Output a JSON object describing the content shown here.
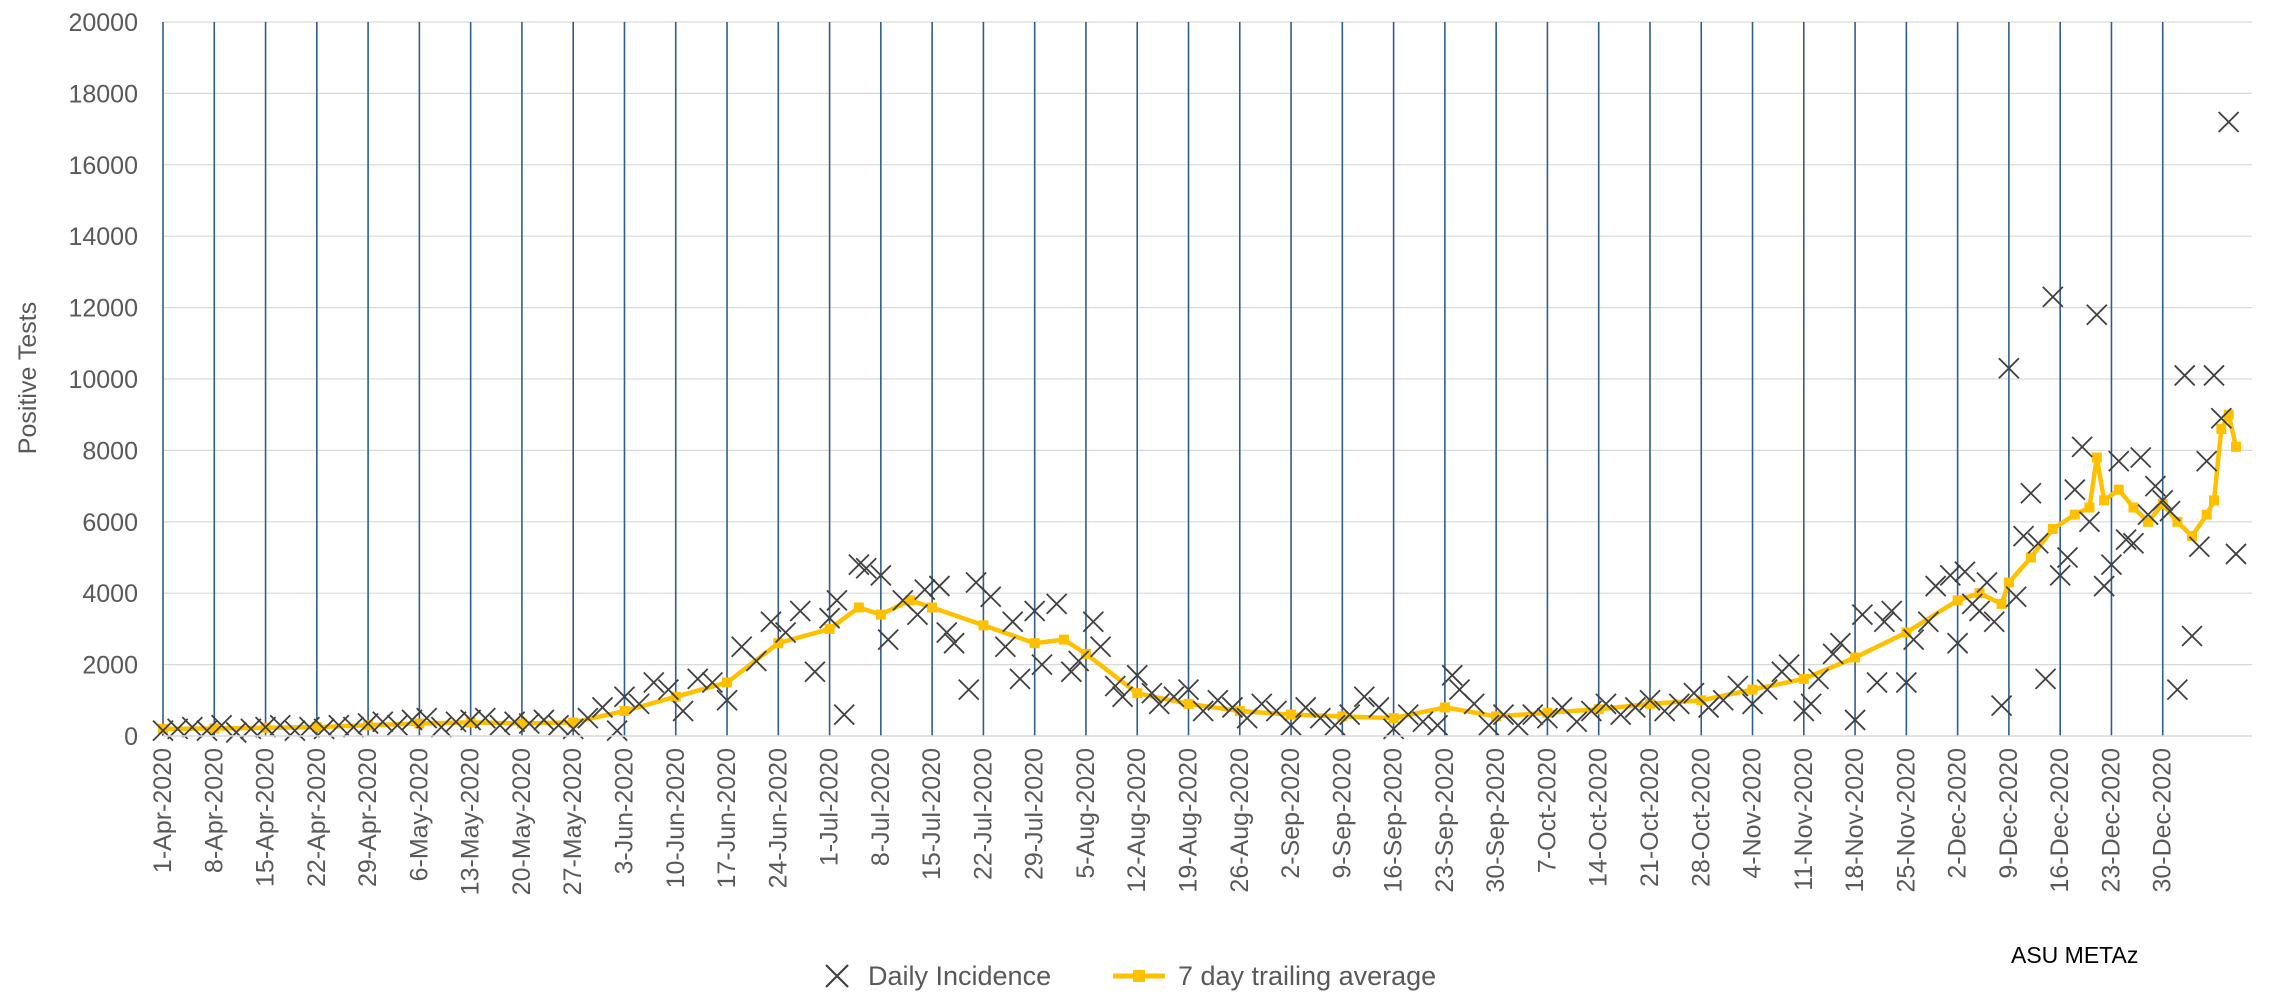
{
  "chart_data": {
    "type": "scatter",
    "xlabel": "",
    "ylabel": "Positive Tests",
    "ylim": [
      0,
      20000
    ],
    "yticks": [
      "0",
      "2000",
      "4000",
      "6000",
      "8000",
      "10000",
      "12000",
      "14000",
      "16000",
      "18000",
      "20000"
    ],
    "x_start": "2020-04-01",
    "x_end": "2021-01-06",
    "xticks": [
      "1-Apr-2020",
      "8-Apr-2020",
      "15-Apr-2020",
      "22-Apr-2020",
      "29-Apr-2020",
      "6-May-2020",
      "13-May-2020",
      "20-May-2020",
      "27-May-2020",
      "3-Jun-2020",
      "10-Jun-2020",
      "17-Jun-2020",
      "24-Jun-2020",
      "1-Jul-2020",
      "8-Jul-2020",
      "15-Jul-2020",
      "22-Jul-2020",
      "29-Jul-2020",
      "5-Aug-2020",
      "12-Aug-2020",
      "19-Aug-2020",
      "26-Aug-2020",
      "2-Sep-2020",
      "9-Sep-2020",
      "16-Sep-2020",
      "23-Sep-2020",
      "30-Sep-2020",
      "7-Oct-2020",
      "14-Oct-2020",
      "21-Oct-2020",
      "28-Oct-2020",
      "4-Nov-2020",
      "11-Nov-2020",
      "18-Nov-2020",
      "25-Nov-2020",
      "2-Dec-2020",
      "9-Dec-2020",
      "16-Dec-2020",
      "23-Dec-2020",
      "30-Dec-2020"
    ],
    "grid": "vertical lines at each weekly tick, horizontal gridlines",
    "legend": "bottom",
    "series": [
      {
        "name": "Daily Incidence",
        "marker": "x",
        "color": "#404040",
        "points": [
          [
            "2020-04-01",
            150
          ],
          [
            "2020-04-03",
            200
          ],
          [
            "2020-04-05",
            250
          ],
          [
            "2020-04-07",
            150
          ],
          [
            "2020-04-09",
            300
          ],
          [
            "2020-04-11",
            100
          ],
          [
            "2020-04-13",
            200
          ],
          [
            "2020-04-15",
            250
          ],
          [
            "2020-04-17",
            300
          ],
          [
            "2020-04-19",
            150
          ],
          [
            "2020-04-21",
            250
          ],
          [
            "2020-04-23",
            200
          ],
          [
            "2020-04-25",
            300
          ],
          [
            "2020-04-27",
            250
          ],
          [
            "2020-04-29",
            350
          ],
          [
            "2020-05-01",
            400
          ],
          [
            "2020-05-03",
            300
          ],
          [
            "2020-05-05",
            450
          ],
          [
            "2020-05-07",
            500
          ],
          [
            "2020-05-09",
            250
          ],
          [
            "2020-05-11",
            400
          ],
          [
            "2020-05-13",
            450
          ],
          [
            "2020-05-15",
            500
          ],
          [
            "2020-05-17",
            300
          ],
          [
            "2020-05-19",
            400
          ],
          [
            "2020-05-21",
            350
          ],
          [
            "2020-05-23",
            450
          ],
          [
            "2020-05-25",
            300
          ],
          [
            "2020-05-27",
            200
          ],
          [
            "2020-05-29",
            500
          ],
          [
            "2020-05-31",
            800
          ],
          [
            "2020-06-02",
            150
          ],
          [
            "2020-06-03",
            1100
          ],
          [
            "2020-06-05",
            900
          ],
          [
            "2020-06-07",
            1500
          ],
          [
            "2020-06-09",
            1300
          ],
          [
            "2020-06-11",
            700
          ],
          [
            "2020-06-13",
            1600
          ],
          [
            "2020-06-15",
            1500
          ],
          [
            "2020-06-17",
            1000
          ],
          [
            "2020-06-19",
            2500
          ],
          [
            "2020-06-21",
            2100
          ],
          [
            "2020-06-23",
            3200
          ],
          [
            "2020-06-25",
            2900
          ],
          [
            "2020-06-27",
            3500
          ],
          [
            "2020-06-29",
            1800
          ],
          [
            "2020-07-01",
            3300
          ],
          [
            "2020-07-02",
            3800
          ],
          [
            "2020-07-03",
            600
          ],
          [
            "2020-07-05",
            4800
          ],
          [
            "2020-07-06",
            4700
          ],
          [
            "2020-07-08",
            4500
          ],
          [
            "2020-07-09",
            2700
          ],
          [
            "2020-07-11",
            3800
          ],
          [
            "2020-07-13",
            3400
          ],
          [
            "2020-07-14",
            4100
          ],
          [
            "2020-07-16",
            4200
          ],
          [
            "2020-07-17",
            2900
          ],
          [
            "2020-07-18",
            2600
          ],
          [
            "2020-07-20",
            1300
          ],
          [
            "2020-07-21",
            4300
          ],
          [
            "2020-07-23",
            3900
          ],
          [
            "2020-07-25",
            2500
          ],
          [
            "2020-07-26",
            3200
          ],
          [
            "2020-07-27",
            1600
          ],
          [
            "2020-07-29",
            3500
          ],
          [
            "2020-07-30",
            2000
          ],
          [
            "2020-08-01",
            3700
          ],
          [
            "2020-08-03",
            1800
          ],
          [
            "2020-08-04",
            2100
          ],
          [
            "2020-08-06",
            3200
          ],
          [
            "2020-08-07",
            2500
          ],
          [
            "2020-08-09",
            1400
          ],
          [
            "2020-08-10",
            1100
          ],
          [
            "2020-08-12",
            1700
          ],
          [
            "2020-08-14",
            1200
          ],
          [
            "2020-08-15",
            900
          ],
          [
            "2020-08-17",
            1100
          ],
          [
            "2020-08-19",
            1300
          ],
          [
            "2020-08-21",
            700
          ],
          [
            "2020-08-23",
            1000
          ],
          [
            "2020-08-25",
            800
          ],
          [
            "2020-08-27",
            500
          ],
          [
            "2020-08-29",
            900
          ],
          [
            "2020-08-31",
            700
          ],
          [
            "2020-09-02",
            300
          ],
          [
            "2020-09-04",
            800
          ],
          [
            "2020-09-06",
            500
          ],
          [
            "2020-09-08",
            300
          ],
          [
            "2020-09-10",
            600
          ],
          [
            "2020-09-12",
            1100
          ],
          [
            "2020-09-14",
            800
          ],
          [
            "2020-09-16",
            200
          ],
          [
            "2020-09-18",
            600
          ],
          [
            "2020-09-20",
            400
          ],
          [
            "2020-09-22",
            300
          ],
          [
            "2020-09-24",
            1700
          ],
          [
            "2020-09-25",
            1300
          ],
          [
            "2020-09-27",
            900
          ],
          [
            "2020-09-29",
            300
          ],
          [
            "2020-10-01",
            600
          ],
          [
            "2020-10-03",
            300
          ],
          [
            "2020-10-05",
            600
          ],
          [
            "2020-10-07",
            500
          ],
          [
            "2020-10-09",
            800
          ],
          [
            "2020-10-11",
            400
          ],
          [
            "2020-10-13",
            700
          ],
          [
            "2020-10-15",
            900
          ],
          [
            "2020-10-17",
            600
          ],
          [
            "2020-10-19",
            800
          ],
          [
            "2020-10-21",
            1000
          ],
          [
            "2020-10-23",
            700
          ],
          [
            "2020-10-25",
            900
          ],
          [
            "2020-10-27",
            1200
          ],
          [
            "2020-10-29",
            800
          ],
          [
            "2020-10-31",
            1000
          ],
          [
            "2020-11-02",
            1400
          ],
          [
            "2020-11-04",
            900
          ],
          [
            "2020-11-06",
            1300
          ],
          [
            "2020-11-08",
            1800
          ],
          [
            "2020-11-09",
            2000
          ],
          [
            "2020-11-11",
            700
          ],
          [
            "2020-11-12",
            900
          ],
          [
            "2020-11-13",
            1600
          ],
          [
            "2020-11-15",
            2300
          ],
          [
            "2020-11-16",
            2600
          ],
          [
            "2020-11-18",
            450
          ],
          [
            "2020-11-19",
            3400
          ],
          [
            "2020-11-21",
            1500
          ],
          [
            "2020-11-22",
            3200
          ],
          [
            "2020-11-23",
            3500
          ],
          [
            "2020-11-25",
            1500
          ],
          [
            "2020-11-26",
            2700
          ],
          [
            "2020-11-28",
            3200
          ],
          [
            "2020-11-29",
            4200
          ],
          [
            "2020-12-01",
            4500
          ],
          [
            "2020-12-02",
            2600
          ],
          [
            "2020-12-03",
            4600
          ],
          [
            "2020-12-04",
            3700
          ],
          [
            "2020-12-05",
            3500
          ],
          [
            "2020-12-06",
            4300
          ],
          [
            "2020-12-07",
            3200
          ],
          [
            "2020-12-08",
            850
          ],
          [
            "2020-12-09",
            10300
          ],
          [
            "2020-12-10",
            3900
          ],
          [
            "2020-12-11",
            5600
          ],
          [
            "2020-12-12",
            6800
          ],
          [
            "2020-12-13",
            5400
          ],
          [
            "2020-12-14",
            1600
          ],
          [
            "2020-12-15",
            12300
          ],
          [
            "2020-12-16",
            4500
          ],
          [
            "2020-12-17",
            5000
          ],
          [
            "2020-12-18",
            6900
          ],
          [
            "2020-12-19",
            8100
          ],
          [
            "2020-12-20",
            6000
          ],
          [
            "2020-12-21",
            11800
          ],
          [
            "2020-12-22",
            4200
          ],
          [
            "2020-12-23",
            4800
          ],
          [
            "2020-12-24",
            7700
          ],
          [
            "2020-12-25",
            5500
          ],
          [
            "2020-12-26",
            5400
          ],
          [
            "2020-12-27",
            7800
          ],
          [
            "2020-12-28",
            6200
          ],
          [
            "2020-12-29",
            7000
          ],
          [
            "2020-12-30",
            6600
          ],
          [
            "2020-12-31",
            6300
          ],
          [
            "2021-01-01",
            1300
          ],
          [
            "2021-01-02",
            10100
          ],
          [
            "2021-01-03",
            2800
          ],
          [
            "2021-01-04",
            5300
          ],
          [
            "2021-01-05",
            7700
          ],
          [
            "2021-01-06",
            10100
          ],
          [
            "2021-01-07",
            8900
          ],
          [
            "2021-01-08",
            17200
          ],
          [
            "2021-01-09",
            5100
          ]
        ]
      },
      {
        "name": "7 day trailing average",
        "marker": "square",
        "color": "#FFC000",
        "points": [
          [
            "2020-04-01",
            200
          ],
          [
            "2020-04-08",
            210
          ],
          [
            "2020-04-15",
            230
          ],
          [
            "2020-04-22",
            250
          ],
          [
            "2020-04-29",
            300
          ],
          [
            "2020-05-06",
            350
          ],
          [
            "2020-05-13",
            380
          ],
          [
            "2020-05-20",
            350
          ],
          [
            "2020-05-27",
            380
          ],
          [
            "2020-06-03",
            700
          ],
          [
            "2020-06-10",
            1100
          ],
          [
            "2020-06-17",
            1500
          ],
          [
            "2020-06-24",
            2600
          ],
          [
            "2020-07-01",
            3000
          ],
          [
            "2020-07-05",
            3600
          ],
          [
            "2020-07-08",
            3400
          ],
          [
            "2020-07-12",
            3800
          ],
          [
            "2020-07-15",
            3600
          ],
          [
            "2020-07-22",
            3100
          ],
          [
            "2020-07-29",
            2600
          ],
          [
            "2020-08-02",
            2700
          ],
          [
            "2020-08-05",
            2300
          ],
          [
            "2020-08-12",
            1200
          ],
          [
            "2020-08-19",
            900
          ],
          [
            "2020-08-26",
            700
          ],
          [
            "2020-09-02",
            600
          ],
          [
            "2020-09-09",
            550
          ],
          [
            "2020-09-16",
            500
          ],
          [
            "2020-09-23",
            800
          ],
          [
            "2020-09-30",
            550
          ],
          [
            "2020-10-07",
            650
          ],
          [
            "2020-10-14",
            750
          ],
          [
            "2020-10-21",
            900
          ],
          [
            "2020-10-28",
            1000
          ],
          [
            "2020-11-04",
            1300
          ],
          [
            "2020-11-11",
            1600
          ],
          [
            "2020-11-18",
            2200
          ],
          [
            "2020-11-25",
            2900
          ],
          [
            "2020-12-02",
            3800
          ],
          [
            "2020-12-05",
            4000
          ],
          [
            "2020-12-08",
            3700
          ],
          [
            "2020-12-09",
            4300
          ],
          [
            "2020-12-12",
            5000
          ],
          [
            "2020-12-15",
            5800
          ],
          [
            "2020-12-18",
            6200
          ],
          [
            "2020-12-20",
            6400
          ],
          [
            "2020-12-21",
            7800
          ],
          [
            "2020-12-22",
            6600
          ],
          [
            "2020-12-24",
            6900
          ],
          [
            "2020-12-26",
            6400
          ],
          [
            "2020-12-28",
            6000
          ],
          [
            "2020-12-30",
            6500
          ],
          [
            "2021-01-01",
            6000
          ],
          [
            "2021-01-03",
            5600
          ],
          [
            "2021-01-05",
            6200
          ],
          [
            "2021-01-06",
            6600
          ],
          [
            "2021-01-07",
            8600
          ],
          [
            "2021-01-08",
            9000
          ],
          [
            "2021-01-09",
            8100
          ]
        ]
      }
    ]
  },
  "legend": {
    "daily_label": "Daily Incidence",
    "avg_label": "7 day trailing average"
  },
  "credit": "ASU METAz"
}
